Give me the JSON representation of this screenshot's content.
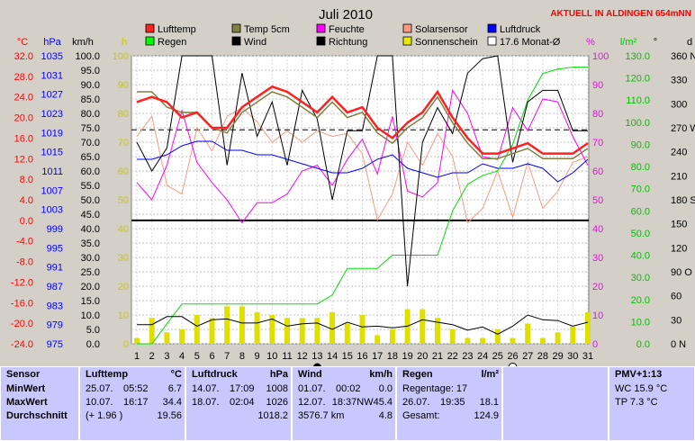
{
  "header": {
    "title": "Juli 2010",
    "station": "AKTUELL IN ALDINGEN 654mNN"
  },
  "legend": [
    {
      "label": "Lufttemp",
      "color": "#ff2020"
    },
    {
      "label": "Temp 5cm",
      "color": "#808040"
    },
    {
      "label": "Feuchte",
      "color": "#ff00ff"
    },
    {
      "label": "Solarsensor",
      "color": "#ff9980"
    },
    {
      "label": "Luftdruck",
      "color": "#0000ff"
    },
    {
      "label": "Regen",
      "color": "#00ff00"
    },
    {
      "label": "Wind",
      "color": "#000000"
    },
    {
      "label": "Richtung",
      "color": "#000000"
    },
    {
      "label": "Sonnenschein",
      "color": "#e8e800"
    },
    {
      "label": "17.6 Monat-Ø",
      "color": "#ffffff"
    }
  ],
  "axis_units": {
    "temp": "°C",
    "pressure": "hPa",
    "wind": "km/h",
    "sun": "h",
    "humidity": "%",
    "rain": "l/m²",
    "direction": "°",
    "dir_letter": "d"
  },
  "axis_labels": {
    "temp": [
      "32.0",
      "28.0",
      "24.0",
      "20.0",
      "16.0",
      "12.0",
      "8.0",
      "4.0",
      "0.0",
      "-4.0",
      "-8.0",
      "-12.0",
      "-16.0",
      "-20.0",
      "-24.0"
    ],
    "pressure": [
      "1035",
      "1031",
      "1027",
      "1023",
      "1019",
      "1015",
      "1011",
      "1007",
      "1003",
      "999",
      "995",
      "991",
      "987",
      "983",
      "979",
      "975"
    ],
    "wind": [
      "100.0",
      "95.0",
      "90.0",
      "85.0",
      "80.0",
      "75.0",
      "70.0",
      "65.0",
      "60.0",
      "55.0",
      "50.0",
      "45.0",
      "40.0",
      "35.0",
      "30.0",
      "25.0",
      "20.0",
      "15.0",
      "10.0",
      "5.0",
      "0.0"
    ],
    "sun": [
      "100",
      "90",
      "80",
      "70",
      "60",
      "50",
      "40",
      "30",
      "20",
      "10",
      "0"
    ],
    "humidity": [
      "100",
      "90",
      "80",
      "70",
      "60",
      "50",
      "40",
      "30",
      "20",
      "10",
      "0"
    ],
    "rain": [
      "130.0",
      "120.0",
      "110.0",
      "100.0",
      "90.0",
      "80.0",
      "70.0",
      "60.0",
      "50.0",
      "40.0",
      "30.0",
      "20.0",
      "10.0",
      "0.0"
    ],
    "direction": [
      "360 N",
      "330",
      "300",
      "270 W",
      "240",
      "210",
      "180 S",
      "150",
      "120",
      "90 O",
      "60",
      "30",
      "0 N"
    ]
  },
  "chart_data": {
    "type": "line",
    "x": [
      1,
      2,
      3,
      4,
      5,
      6,
      7,
      8,
      9,
      10,
      11,
      12,
      13,
      14,
      15,
      16,
      17,
      18,
      19,
      20,
      21,
      22,
      23,
      24,
      25,
      26,
      27,
      28,
      29,
      30,
      31
    ],
    "series": [
      {
        "name": "Lufttemp",
        "axis": "°C",
        "values": [
          23,
          24,
          23,
          20,
          21,
          18,
          18,
          22,
          24,
          26,
          25,
          23,
          21,
          24,
          21,
          22,
          18,
          16,
          19,
          21,
          25,
          20,
          16,
          13,
          13,
          14,
          15,
          13,
          13,
          13,
          15
        ]
      },
      {
        "name": "Temp 5cm",
        "axis": "°C",
        "values": [
          25,
          25,
          22,
          21,
          21,
          18,
          17,
          21,
          23,
          25,
          24,
          22,
          20,
          23,
          20,
          21,
          17,
          15,
          18,
          20,
          24,
          19,
          15,
          12,
          12,
          13,
          14,
          12,
          12,
          12,
          14
        ]
      },
      {
        "name": "Feuchte",
        "axis": "%",
        "values": [
          56,
          50,
          62,
          81,
          63,
          56,
          50,
          42,
          49,
          49,
          52,
          60,
          62,
          55,
          64,
          71,
          59,
          79,
          53,
          51,
          56,
          88,
          80,
          65,
          64,
          82,
          74,
          85,
          84,
          72,
          62
        ]
      },
      {
        "name": "Solarsensor",
        "axis": "%",
        "values": [
          72,
          79,
          55,
          52,
          75,
          67,
          79,
          82,
          77,
          70,
          74,
          70,
          74,
          72,
          73,
          66,
          43,
          52,
          70,
          62,
          73,
          65,
          42,
          47,
          60,
          44,
          63,
          47,
          53,
          63,
          65
        ]
      },
      {
        "name": "Luftdruck",
        "axis": "hPa",
        "values": [
          1016,
          1016,
          1017,
          1019,
          1020,
          1020,
          1018,
          1018,
          1017,
          1017,
          1016,
          1015,
          1014,
          1013,
          1013,
          1014,
          1016,
          1017,
          1014,
          1013,
          1012,
          1013,
          1013,
          1015,
          1014,
          1014,
          1015,
          1014,
          1011,
          1013,
          1016
        ]
      },
      {
        "name": "Regen",
        "axis": "l/m²",
        "values": [
          0,
          0,
          9,
          18,
          18,
          18,
          18,
          18,
          18,
          18,
          18,
          18,
          18,
          22,
          34,
          34,
          34,
          40,
          40,
          40,
          40,
          60,
          72,
          76,
          78,
          90,
          110,
          122,
          124,
          124.9,
          124.9
        ]
      },
      {
        "name": "Wind",
        "axis": "km/h",
        "values": [
          70,
          60,
          68,
          100,
          100,
          100,
          62,
          94,
          72,
          84,
          62,
          88,
          78,
          50,
          74,
          74,
          100,
          100,
          20,
          70,
          82,
          73,
          94,
          99,
          100,
          63,
          84,
          88,
          88,
          74,
          74
        ]
      },
      {
        "name": "Richtung",
        "axis": "°",
        "values": [
          24,
          24,
          34,
          34,
          22,
          30,
          31,
          26,
          26,
          31,
          22,
          25,
          26,
          18,
          27,
          21,
          22,
          20,
          22,
          30,
          27,
          24,
          17,
          21,
          12,
          22,
          36,
          30,
          29,
          22,
          27
        ]
      },
      {
        "name": "Sonnenschein",
        "axis": "h",
        "values": [
          2,
          9,
          4,
          5,
          10,
          9,
          13,
          13,
          11,
          10,
          9,
          9,
          9,
          11,
          7,
          10,
          3,
          5,
          12,
          12,
          9,
          5,
          2,
          2,
          5,
          2,
          7,
          2,
          4,
          6,
          11
        ]
      }
    ],
    "month_avg": 17.6,
    "symbols": {
      "new_moon_day": 13,
      "full_moon_day": 26
    }
  },
  "panels": {
    "sensor": {
      "header": "Sensor",
      "rows": [
        "MinWert",
        "MaxWert",
        "Durchschnitt"
      ]
    },
    "lufttemp": {
      "header": "Lufttemp",
      "unit": "°C",
      "rows": [
        [
          "25.07.",
          "05:52",
          "6.7"
        ],
        [
          "10.07.",
          "16:17",
          "34.4"
        ],
        [
          "(+ 1.96 )",
          "",
          "19.56"
        ]
      ]
    },
    "luftdruck": {
      "header": "Luftdruck",
      "unit": "hPa",
      "rows": [
        [
          "14.07.",
          "17:09",
          "1008"
        ],
        [
          "18.07.",
          "02:04",
          "1026"
        ],
        [
          "",
          "",
          "1018.2"
        ]
      ]
    },
    "wind": {
      "header": "Wind",
      "unit": "km/h",
      "rows": [
        [
          "01.07.",
          "00:02",
          "0.0"
        ],
        [
          "12.07.",
          "18:37NW",
          "45.4"
        ],
        [
          "3576.7 km",
          "",
          "4.8"
        ]
      ]
    },
    "regen": {
      "header": "Regen",
      "unit": "l/m²",
      "rows": [
        [
          "Regentage: 17",
          "",
          ""
        ],
        [
          "26.07.",
          "19:35",
          "18.1"
        ],
        [
          "Gesamt:",
          "",
          "124.9"
        ]
      ]
    },
    "pmv": {
      "header": "PMV+1:13",
      "rows": [
        "WC 15.9 °C",
        "TP 7.3 °C"
      ]
    }
  }
}
